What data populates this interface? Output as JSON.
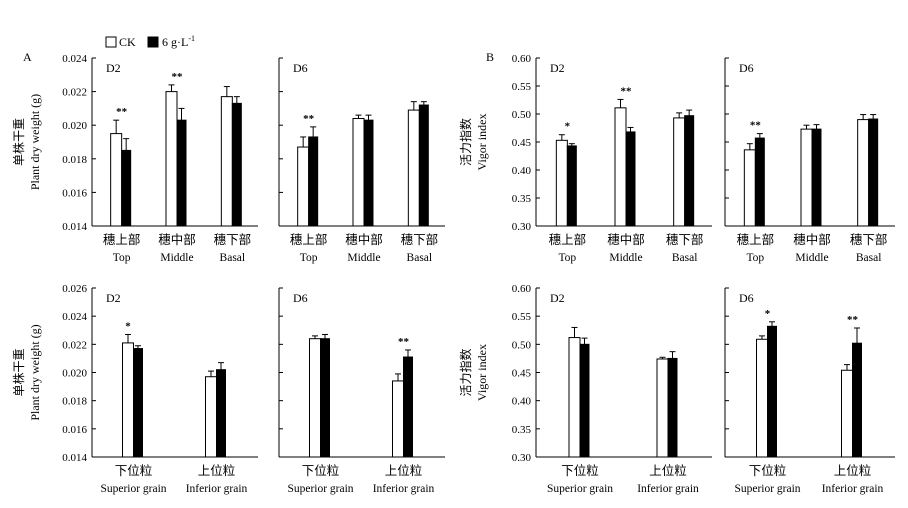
{
  "legend": {
    "ck_label": "CK",
    "treat_label": "6 g·L",
    "treat_sup": "-1"
  },
  "figure_labels": [
    "A",
    "B"
  ],
  "chart_data": [
    {
      "type": "bar",
      "id": "A_top",
      "ylabel_cn": "单株干重",
      "ylabel_en": "Plant dry weight (g)",
      "ylim": [
        0.014,
        0.024
      ],
      "ticks": [
        "0.014",
        "0.016",
        "0.018",
        "0.020",
        "0.022",
        "0.024"
      ],
      "categories": [
        {
          "cn": "穗上部",
          "en": "Top"
        },
        {
          "cn": "穗中部",
          "en": "Middle"
        },
        {
          "cn": "穗下部",
          "en": "Basal"
        }
      ],
      "panels": [
        {
          "label": "D2",
          "ck": [
            0.0195,
            0.022,
            0.0217
          ],
          "ck_err": [
            0.0008,
            0.0004,
            0.0006
          ],
          "t": [
            0.0185,
            0.0203,
            0.0213
          ],
          "t_err": [
            0.0007,
            0.0007,
            0.0004
          ],
          "sig": [
            "**",
            "**",
            ""
          ]
        },
        {
          "label": "D6",
          "ck": [
            0.0187,
            0.0204,
            0.0209
          ],
          "ck_err": [
            0.0006,
            0.0002,
            0.0005
          ],
          "t": [
            0.0193,
            0.0203,
            0.0212
          ],
          "t_err": [
            0.0006,
            0.0003,
            0.0002
          ],
          "sig": [
            "**",
            "",
            ""
          ]
        }
      ]
    },
    {
      "type": "bar",
      "id": "B_top",
      "ylabel_cn": "活力指数",
      "ylabel_en": "Vigor index",
      "ylim": [
        0.3,
        0.6
      ],
      "ticks": [
        "0.30",
        "0.35",
        "0.40",
        "0.45",
        "0.50",
        "0.55",
        "0.60"
      ],
      "categories": [
        {
          "cn": "穗上部",
          "en": "Top"
        },
        {
          "cn": "穗中部",
          "en": "Middle"
        },
        {
          "cn": "穗下部",
          "en": "Basal"
        }
      ],
      "panels": [
        {
          "label": "D2",
          "ck": [
            0.453,
            0.511,
            0.493
          ],
          "ck_err": [
            0.01,
            0.015,
            0.009
          ],
          "t": [
            0.443,
            0.468,
            0.497
          ],
          "t_err": [
            0.004,
            0.008,
            0.01
          ],
          "sig": [
            "*",
            "**",
            ""
          ]
        },
        {
          "label": "D6",
          "ck": [
            0.436,
            0.473,
            0.49
          ],
          "ck_err": [
            0.011,
            0.007,
            0.009
          ],
          "t": [
            0.457,
            0.473,
            0.491
          ],
          "t_err": [
            0.008,
            0.008,
            0.008
          ],
          "sig": [
            "**",
            "",
            ""
          ]
        }
      ]
    },
    {
      "type": "bar",
      "id": "A_bottom",
      "ylabel_cn": "单株干重",
      "ylabel_en": "Plant dry weight (g)",
      "ylim": [
        0.014,
        0.026
      ],
      "ticks": [
        "0.014",
        "0.016",
        "0.018",
        "0.020",
        "0.022",
        "0.024",
        "0.026"
      ],
      "categories": [
        {
          "cn": "下位粒",
          "en": "Superior grain"
        },
        {
          "cn": "上位粒",
          "en": "Inferior grain"
        }
      ],
      "panels": [
        {
          "label": "D2",
          "ck": [
            0.0221,
            0.0197
          ],
          "ck_err": [
            0.0006,
            0.0004
          ],
          "t": [
            0.0217,
            0.0202
          ],
          "t_err": [
            0.0002,
            0.0005
          ],
          "sig": [
            "*",
            ""
          ]
        },
        {
          "label": "D6",
          "ck": [
            0.0224,
            0.0194
          ],
          "ck_err": [
            0.0002,
            0.0005
          ],
          "t": [
            0.0224,
            0.0211
          ],
          "t_err": [
            0.0003,
            0.0005
          ],
          "sig": [
            "",
            "**"
          ]
        }
      ]
    },
    {
      "type": "bar",
      "id": "B_bottom",
      "ylabel_cn": "活力指数",
      "ylabel_en": "Vigor index",
      "ylim": [
        0.3,
        0.6
      ],
      "ticks": [
        "0.30",
        "0.35",
        "0.40",
        "0.45",
        "0.50",
        "0.55",
        "0.60"
      ],
      "categories": [
        {
          "cn": "下位粒",
          "en": "Superior grain"
        },
        {
          "cn": "上位粒",
          "en": "Inferior grain"
        }
      ],
      "panels": [
        {
          "label": "D2",
          "ck": [
            0.512,
            0.474
          ],
          "ck_err": [
            0.018,
            0.003
          ],
          "t": [
            0.5,
            0.475
          ],
          "t_err": [
            0.011,
            0.012
          ],
          "sig": [
            "",
            ""
          ]
        },
        {
          "label": "D6",
          "ck": [
            0.509,
            0.454
          ],
          "ck_err": [
            0.006,
            0.01
          ],
          "t": [
            0.532,
            0.502
          ],
          "t_err": [
            0.008,
            0.027
          ],
          "sig": [
            "*",
            "**"
          ]
        }
      ]
    }
  ]
}
